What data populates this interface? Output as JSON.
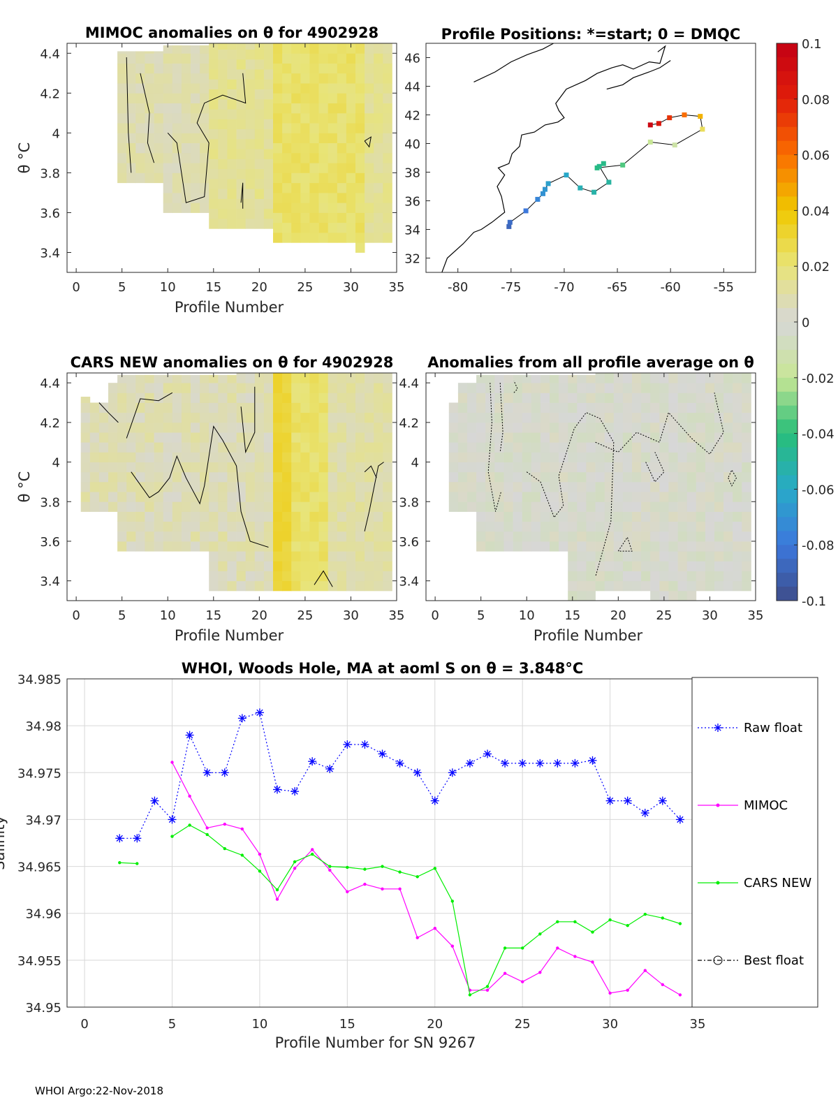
{
  "float_id": "4902928",
  "footer": "WHOI Argo:22-Nov-2018",
  "chart_data": [
    {
      "type": "heatmap",
      "id": "mimoc",
      "title": "MIMOC anomalies on θ  for 4902928",
      "xlabel": "Profile Number",
      "ylabel": "θ °C",
      "xlim": [
        -1,
        35
      ],
      "ylim": [
        3.3,
        4.45
      ],
      "xticks": [
        0,
        5,
        10,
        15,
        20,
        25,
        30,
        35
      ],
      "yticks": [
        3.4,
        3.6,
        3.8,
        4.0,
        4.2,
        4.4
      ],
      "ytick_labels": [
        "3.4",
        "3.6",
        "3.8",
        "4",
        "4.2",
        "4.4"
      ]
    },
    {
      "type": "scatter",
      "id": "positions",
      "title": "Profile Positions: *=start; 0 = DMQC",
      "xlim": [
        -83,
        -52
      ],
      "ylim": [
        31,
        47
      ],
      "xticks": [
        -80,
        -75,
        -70,
        -65,
        -60,
        -55
      ],
      "yticks": [
        32,
        34,
        36,
        38,
        40,
        42,
        44,
        46
      ],
      "track_lon": [
        -75.2,
        -75.1,
        -73.6,
        -72.5,
        -72.0,
        -71.8,
        -71.5,
        -69.8,
        -68.5,
        -67.2,
        -65.8,
        -66.7,
        -66.3,
        -66.9,
        -64.5,
        -61.9,
        -59.6,
        -57.0,
        -57.2,
        -58.7,
        -60.1,
        -61.1,
        -61.9
      ],
      "track_lat": [
        34.2,
        34.5,
        35.3,
        36.1,
        36.5,
        36.8,
        37.2,
        37.8,
        36.9,
        36.6,
        37.3,
        38.4,
        38.6,
        38.3,
        38.5,
        40.1,
        39.9,
        41.0,
        41.9,
        42.0,
        41.8,
        41.4,
        41.3
      ],
      "track_anom": [
        -0.088,
        -0.085,
        -0.08,
        -0.075,
        -0.07,
        -0.068,
        -0.064,
        -0.061,
        -0.055,
        -0.052,
        -0.05,
        -0.046,
        -0.044,
        -0.043,
        -0.035,
        -0.02,
        -0.015,
        0.025,
        0.045,
        0.06,
        0.075,
        0.085,
        0.095
      ]
    },
    {
      "type": "heatmap",
      "id": "cars",
      "title": "CARS NEW anomalies on θ for 4902928",
      "xlabel": "Profile Number",
      "ylabel": "θ °C",
      "xlim": [
        -1,
        35
      ],
      "ylim": [
        3.3,
        4.45
      ],
      "xticks": [
        0,
        5,
        10,
        15,
        20,
        25,
        30,
        35
      ],
      "yticks": [
        3.4,
        3.6,
        3.8,
        4.0,
        4.2,
        4.4
      ],
      "ytick_labels": [
        "3.4",
        "3.6",
        "3.8",
        "4",
        "4.2",
        "4.4"
      ]
    },
    {
      "type": "heatmap",
      "id": "avg",
      "title": "Anomalies from all profile average on θ",
      "xlabel": "Profile Number",
      "xlim": [
        -1,
        35
      ],
      "ylim": [
        3.3,
        4.45
      ],
      "xticks": [
        0,
        5,
        10,
        15,
        20,
        25,
        30,
        35
      ],
      "yticks": [
        3.4,
        3.6,
        3.8,
        4.0,
        4.2,
        4.4
      ],
      "ytick_labels": [
        "3.4",
        "3.6",
        "3.8",
        "4",
        "4.2",
        "4.4"
      ]
    },
    {
      "type": "line",
      "id": "salinity",
      "title": "WHOI, Woods Hole, MA at aoml S on θ = 3.848°C",
      "xlabel": "Profile Number for SN 9267",
      "ylabel": "Salinity",
      "xlim": [
        -1,
        35
      ],
      "ylim": [
        34.95,
        34.985
      ],
      "xticks": [
        0,
        5,
        10,
        15,
        20,
        25,
        30,
        35
      ],
      "yticks": [
        34.95,
        34.955,
        34.96,
        34.965,
        34.97,
        34.975,
        34.98,
        34.985
      ],
      "ytick_labels": [
        "34.95",
        "34.955",
        "34.96",
        "34.965",
        "34.97",
        "34.975",
        "34.98",
        "34.985"
      ],
      "series": [
        {
          "name": "Raw float",
          "color": "#0000ff",
          "marker": "star",
          "dash": "2,3",
          "x": [
            2,
            3,
            4,
            5,
            6,
            7,
            8,
            9,
            10,
            11,
            12,
            13,
            14,
            15,
            16,
            17,
            18,
            19,
            20,
            21,
            22,
            23,
            24,
            25,
            26,
            27,
            28,
            29,
            30,
            31,
            32,
            33,
            34
          ],
          "y": [
            34.968,
            34.968,
            34.972,
            34.97,
            34.979,
            34.975,
            34.975,
            34.9808,
            34.9814,
            34.9732,
            34.973,
            34.9762,
            34.9754,
            34.978,
            34.978,
            34.977,
            34.976,
            34.975,
            34.972,
            34.975,
            34.976,
            34.977,
            34.976,
            34.976,
            34.976,
            34.976,
            34.976,
            34.9763,
            34.972,
            34.972,
            34.9707,
            34.972,
            34.97
          ]
        },
        {
          "name": "MIMOC",
          "color": "#ff00ff",
          "marker": "dot",
          "dash": "",
          "x": [
            5,
            6,
            7,
            8,
            9,
            10,
            11,
            12,
            13,
            14,
            15,
            16,
            17,
            18,
            19,
            20,
            21,
            22,
            23,
            24,
            25,
            26,
            27,
            28,
            29,
            30,
            31,
            32,
            33,
            34
          ],
          "y": [
            34.9761,
            34.9725,
            34.9691,
            34.9695,
            34.969,
            34.9663,
            34.9615,
            34.9648,
            34.9668,
            34.9646,
            34.9623,
            34.9631,
            34.9626,
            34.9626,
            34.9574,
            34.9584,
            34.9565,
            34.9518,
            34.9518,
            34.9536,
            34.9527,
            34.9537,
            34.9563,
            34.9554,
            34.9548,
            34.9515,
            34.9518,
            34.9539,
            34.9524,
            34.9513
          ]
        },
        {
          "name": "CARS NEW",
          "color": "#00ee00",
          "marker": "dot",
          "dash": "",
          "segments": [
            {
              "x": [
                2,
                3
              ],
              "y": [
                34.9654,
                34.9653
              ]
            },
            {
              "x": [
                5,
                6,
                7,
                8,
                9,
                10,
                11,
                12,
                13,
                14,
                15,
                16,
                17,
                18,
                19,
                20,
                21,
                22,
                23,
                24,
                25,
                26,
                27,
                28,
                29,
                30,
                31,
                32,
                33,
                34
              ],
              "y": [
                34.9682,
                34.9694,
                34.9684,
                34.9669,
                34.9662,
                34.9645,
                34.9625,
                34.9655,
                34.9663,
                34.965,
                34.9649,
                34.9647,
                34.965,
                34.9644,
                34.9639,
                34.9648,
                34.9613,
                34.9513,
                34.9522,
                34.9563,
                34.9563,
                34.9578,
                34.9591,
                34.9591,
                34.958,
                34.9593,
                34.9587,
                34.9599,
                34.9595,
                34.9589
              ]
            }
          ]
        }
      ],
      "legend": [
        "Raw float",
        "MIMOC",
        "CARS NEW",
        "Best float"
      ]
    }
  ],
  "colorbar": {
    "min": -0.1,
    "max": 0.1,
    "ticks": [
      "0.1",
      "0.08",
      "0.06",
      "0.04",
      "0.02",
      "0",
      "-0.02",
      "-0.04",
      "-0.06",
      "-0.08",
      "-0.1"
    ]
  }
}
